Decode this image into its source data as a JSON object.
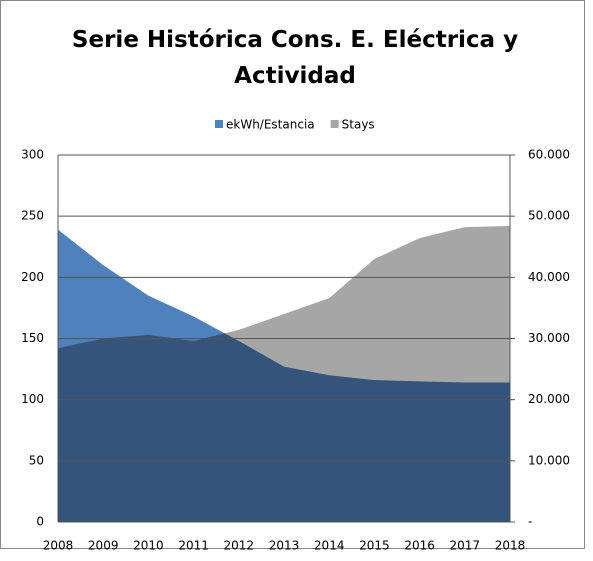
{
  "chart_data": {
    "type": "area",
    "title": "Serie Histórica Cons. E. Eléctrica y Actividad",
    "categories": [
      "2008",
      "2009",
      "2010",
      "2011",
      "2012",
      "2013",
      "2014",
      "2015",
      "2016",
      "2017",
      "2018"
    ],
    "series": [
      {
        "name": "ekWh/Estancia",
        "color": "#4f81bd",
        "values": [
          239,
          210,
          185,
          168,
          148,
          127,
          120,
          116,
          115,
          114,
          114
        ]
      },
      {
        "name": "Stays",
        "color": "#a6a6a6",
        "axis": "y2",
        "values": [
          28400,
          30000,
          30600,
          29600,
          31400,
          34000,
          36600,
          43000,
          46400,
          48200,
          48400
        ]
      }
    ],
    "ylim": [
      0,
      300
    ],
    "yticks": [
      0,
      50,
      100,
      150,
      200,
      250,
      300
    ],
    "y2lim": [
      0,
      60000
    ],
    "y2ticks": [
      {
        "value": 0,
        "label": "-"
      },
      {
        "value": 10000,
        "label": "10.000"
      },
      {
        "value": 20000,
        "label": "20.000"
      },
      {
        "value": 30000,
        "label": "30.000"
      },
      {
        "value": 40000,
        "label": "40.000"
      },
      {
        "value": 50000,
        "label": "50.000"
      },
      {
        "value": 60000,
        "label": "60.000"
      }
    ],
    "grid": true,
    "legend": "top"
  }
}
